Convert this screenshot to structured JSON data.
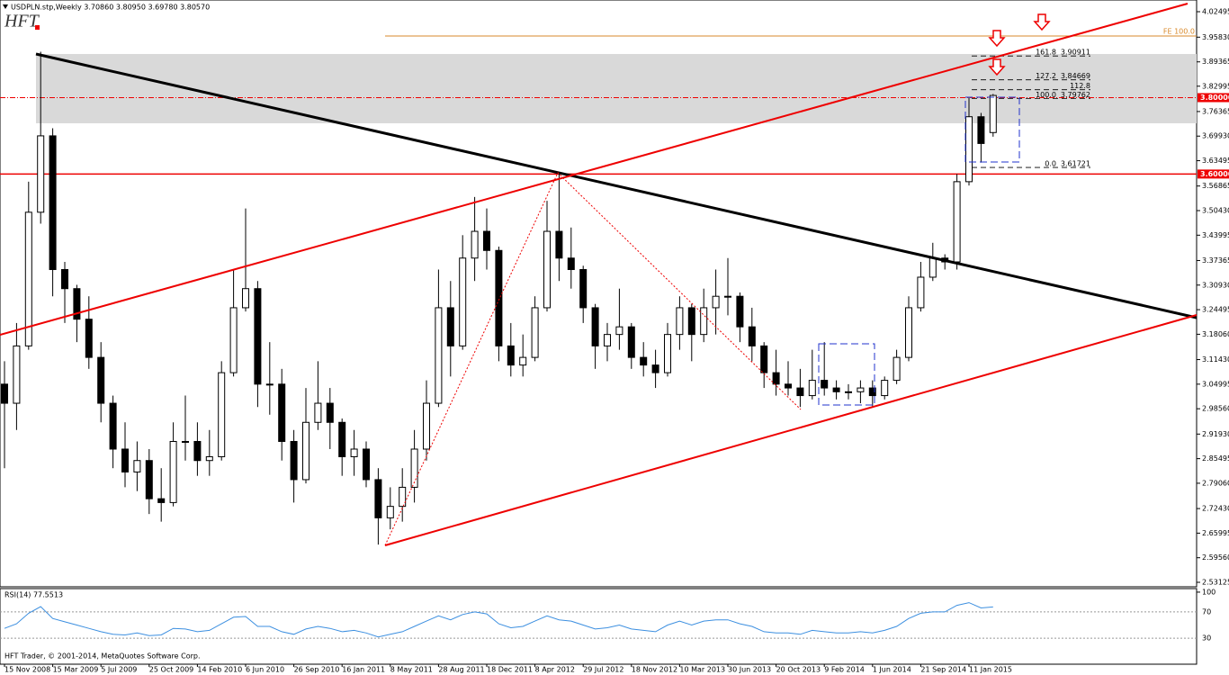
{
  "chart_data": {
    "type": "candlestick",
    "title": "USDPLN.stp,Weekly 3.70860 3.80950 3.69780 3.80570",
    "logo": "HFT",
    "copyright": "HFT Trader, © 2001-2014, MetaQuotes Software Corp.",
    "categories": [
      "15 Nov 2008",
      null,
      null,
      null,
      "15 Mar 2009",
      null,
      null,
      null,
      "5 Jul 2009",
      null,
      null,
      null,
      "25 Oct 2009",
      null,
      null,
      null,
      "14 Feb 2010",
      null,
      null,
      null,
      "6 Jun 2010",
      null,
      null,
      null,
      "26 Sep 2010",
      null,
      null,
      null,
      "16 Jan 2011",
      null,
      null,
      null,
      "8 May 2011",
      null,
      null,
      null,
      "28 Aug 2011",
      null,
      null,
      null,
      "18 Dec 2011",
      null,
      null,
      null,
      "8 Apr 2012",
      null,
      null,
      null,
      "29 Jul 2012",
      null,
      null,
      null,
      "18 Nov 2012",
      null,
      null,
      null,
      "10 Mar 2013",
      null,
      null,
      null,
      "30 Jun 2013",
      null,
      null,
      null,
      "20 Oct 2013",
      null,
      null,
      null,
      "9 Feb 2014",
      null,
      null,
      null,
      "1 Jun 2014",
      null,
      null,
      null,
      "21 Sep 2014",
      null,
      null,
      null,
      "11 Jan 2015",
      null,
      null
    ],
    "open": [
      3.05,
      3.0,
      3.15,
      3.5,
      3.7,
      3.35,
      3.3,
      3.22,
      3.12,
      3.0,
      2.88,
      2.82,
      2.85,
      2.75,
      2.74,
      2.9,
      2.9,
      2.85,
      2.86,
      3.08,
      3.25,
      3.3,
      3.05,
      3.05,
      2.9,
      2.8,
      2.95,
      3.0,
      2.95,
      2.86,
      2.88,
      2.8,
      2.7,
      2.73,
      2.78,
      2.88,
      3.0,
      3.25,
      3.15,
      3.38,
      3.45,
      3.4,
      3.15,
      3.1,
      3.12,
      3.25,
      3.45,
      3.38,
      3.35,
      3.25,
      3.15,
      3.18,
      3.2,
      3.12,
      3.1,
      3.08,
      3.18,
      3.25,
      3.18,
      3.25,
      3.28,
      3.28,
      3.2,
      3.15,
      3.08,
      3.05,
      3.04,
      3.02,
      3.06,
      3.04,
      3.03,
      3.03,
      3.04,
      3.02,
      3.06,
      3.12,
      3.25,
      3.33,
      3.38,
      3.37,
      3.58,
      3.75,
      3.7086
    ],
    "high": [
      3.11,
      3.21,
      3.58,
      3.92,
      3.72,
      3.37,
      3.31,
      3.28,
      3.16,
      3.02,
      2.95,
      2.9,
      2.88,
      2.83,
      2.95,
      3.02,
      2.95,
      2.93,
      3.11,
      3.35,
      3.51,
      3.32,
      3.16,
      3.09,
      2.93,
      3.04,
      3.11,
      3.04,
      2.96,
      2.93,
      2.9,
      2.83,
      2.78,
      2.83,
      2.93,
      3.06,
      3.35,
      3.32,
      3.44,
      3.54,
      3.51,
      3.41,
      3.21,
      3.18,
      3.28,
      3.53,
      3.6,
      3.46,
      3.36,
      3.26,
      3.21,
      3.3,
      3.21,
      3.16,
      3.14,
      3.21,
      3.28,
      3.26,
      3.3,
      3.35,
      3.38,
      3.29,
      3.25,
      3.16,
      3.14,
      3.11,
      3.09,
      3.14,
      3.16,
      3.06,
      3.05,
      3.06,
      3.06,
      3.07,
      3.14,
      3.28,
      3.37,
      3.42,
      3.39,
      3.6,
      3.8,
      3.76,
      3.8095
    ],
    "low": [
      2.83,
      2.93,
      3.14,
      3.47,
      3.28,
      3.21,
      3.16,
      3.09,
      2.95,
      2.83,
      2.78,
      2.77,
      2.71,
      2.69,
      2.73,
      2.85,
      2.81,
      2.81,
      2.85,
      3.07,
      3.24,
      2.99,
      2.97,
      2.85,
      2.74,
      2.79,
      2.93,
      2.88,
      2.81,
      2.81,
      2.78,
      2.63,
      2.67,
      2.69,
      2.74,
      2.85,
      2.99,
      3.07,
      3.14,
      3.32,
      3.35,
      3.11,
      3.07,
      3.07,
      3.11,
      3.24,
      3.32,
      3.3,
      3.21,
      3.09,
      3.11,
      3.14,
      3.09,
      3.07,
      3.04,
      3.07,
      3.14,
      3.11,
      3.16,
      3.18,
      3.23,
      3.16,
      3.11,
      3.04,
      3.02,
      3.02,
      2.99,
      3.01,
      3.02,
      3.01,
      3.01,
      3.0,
      2.99,
      3.01,
      3.05,
      3.11,
      3.24,
      3.32,
      3.35,
      3.35,
      3.57,
      3.63,
      3.6978
    ],
    "close": [
      3.0,
      3.15,
      3.5,
      3.7,
      3.35,
      3.3,
      3.22,
      3.12,
      3.0,
      2.88,
      2.82,
      2.85,
      2.75,
      2.74,
      2.9,
      2.9,
      2.85,
      2.86,
      3.08,
      3.25,
      3.3,
      3.05,
      3.05,
      2.9,
      2.8,
      2.95,
      3.0,
      2.95,
      2.86,
      2.88,
      2.8,
      2.7,
      2.73,
      2.78,
      2.88,
      3.0,
      3.25,
      3.15,
      3.38,
      3.45,
      3.4,
      3.15,
      3.1,
      3.12,
      3.25,
      3.45,
      3.38,
      3.35,
      3.25,
      3.15,
      3.18,
      3.2,
      3.12,
      3.1,
      3.08,
      3.18,
      3.25,
      3.18,
      3.25,
      3.28,
      3.28,
      3.2,
      3.15,
      3.08,
      3.05,
      3.04,
      3.02,
      3.06,
      3.04,
      3.03,
      3.03,
      3.04,
      3.02,
      3.06,
      3.12,
      3.25,
      3.33,
      3.38,
      3.37,
      3.58,
      3.75,
      3.68,
      3.8057
    ],
    "ylim": [
      2.5195,
      4.0556
    ],
    "yticks": [
      4.02495,
      {
        "value": 3.9583,
        "label": "3.95830"
      },
      3.89365,
      3.82995,
      3.76365,
      {
        "value": 3.6993,
        "label": "3.69930"
      },
      3.63495,
      3.56865,
      {
        "value": 3.5043,
        "label": "3.50430"
      },
      3.43995,
      3.37365,
      {
        "value": 3.3093,
        "label": "3.30930"
      },
      3.24495,
      {
        "value": 3.1806,
        "label": "3.18060"
      },
      {
        "value": 3.1143,
        "label": "3.11430"
      },
      3.04995,
      {
        "value": 2.9856,
        "label": "2.98560"
      },
      {
        "value": 2.9193,
        "label": "2.91930"
      },
      2.85495,
      {
        "value": 2.7906,
        "label": "2.79060"
      },
      {
        "value": 2.7243,
        "label": "2.72430"
      },
      2.65995,
      {
        "value": 2.5956,
        "label": "2.59560"
      },
      2.53125
    ],
    "levels": [
      {
        "value": 3.8,
        "label": "3.80000"
      },
      {
        "value": 3.6,
        "label": "3.60000"
      }
    ],
    "fe_level": {
      "value": 3.9613,
      "label": "FE 100.0"
    },
    "fib": {
      "labels": [
        "161.8",
        "127.2",
        "112.8",
        "100.0",
        "0.0"
      ],
      "values": [
        3.90911,
        3.84669,
        3.8207,
        3.79762,
        3.61721
      ],
      "value_labels": [
        "3.90911",
        "3.84669",
        null,
        "3.79762",
        "3.61721"
      ]
    },
    "rsi": {
      "title": "RSI(14) 77.5513",
      "color": "#3c8fe0",
      "ylim": [
        -8,
        104
      ],
      "yticks": [
        100,
        70,
        30
      ],
      "values": [
        45,
        52,
        68,
        78,
        60,
        55,
        50,
        45,
        40,
        36,
        35,
        38,
        34,
        35,
        45,
        44,
        40,
        42,
        52,
        62,
        63,
        48,
        48,
        40,
        36,
        44,
        48,
        45,
        40,
        42,
        38,
        32,
        36,
        40,
        48,
        56,
        64,
        58,
        66,
        70,
        67,
        52,
        46,
        48,
        56,
        64,
        58,
        56,
        50,
        44,
        46,
        50,
        44,
        42,
        40,
        50,
        56,
        50,
        56,
        58,
        58,
        52,
        48,
        40,
        38,
        38,
        36,
        42,
        40,
        38,
        38,
        40,
        38,
        42,
        48,
        60,
        68,
        70,
        70,
        80,
        84,
        76,
        77.5513
      ]
    }
  }
}
